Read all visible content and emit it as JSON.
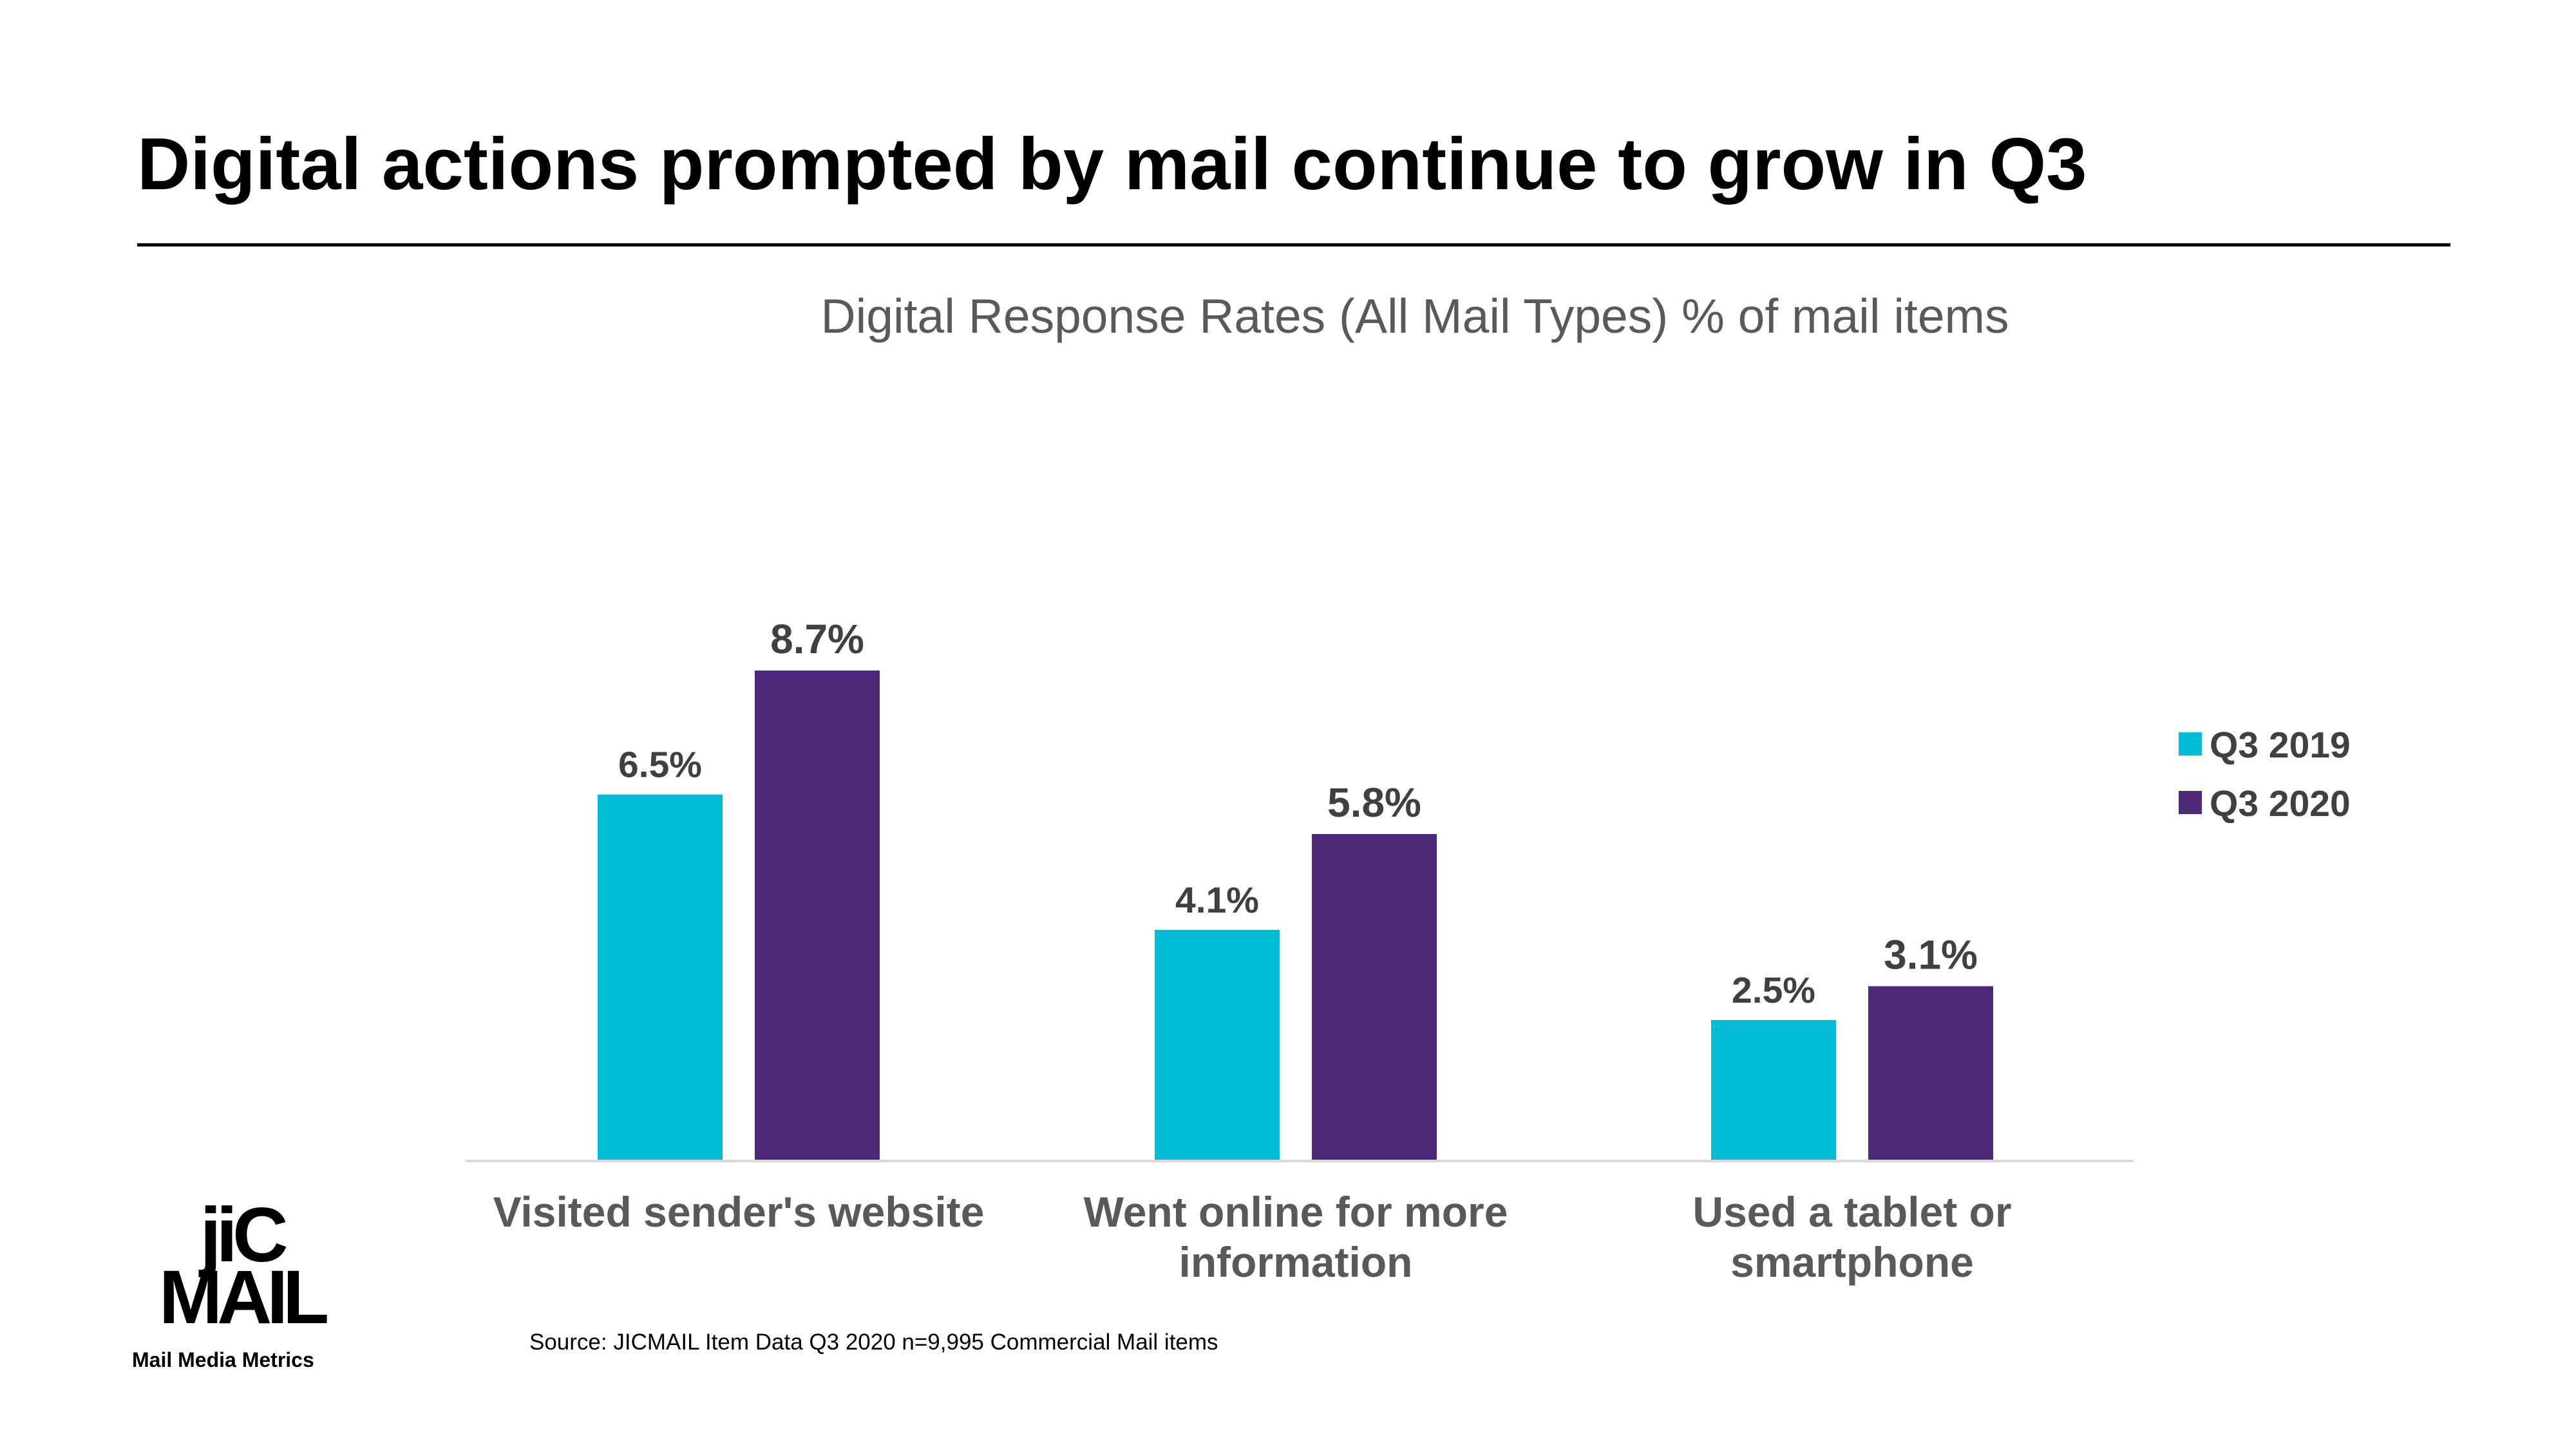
{
  "slide": {
    "title": "Digital actions prompted by mail continue to grow in Q3",
    "source_note": "Source: JICMAIL Item Data Q3 2020 n=9,995 Commercial Mail items"
  },
  "logo": {
    "mark_line1": "jiC",
    "mark_line2": "MAIL",
    "tagline": "Mail Media Metrics"
  },
  "chart_data": {
    "type": "bar",
    "title": "Digital Response Rates (All Mail Types) % of mail items",
    "xlabel": "",
    "ylabel": "",
    "ylim": [
      0,
      10
    ],
    "grid": false,
    "legend_position": "right",
    "categories": [
      [
        "Visited sender's website"
      ],
      [
        "Went online for more",
        "information"
      ],
      [
        "Used a tablet or",
        "smartphone"
      ]
    ],
    "series": [
      {
        "name": "Q3 2019",
        "color": "#00BCD4",
        "values": [
          6.5,
          4.1,
          2.5
        ],
        "labels": [
          "6.5%",
          "4.1%",
          "2.5%"
        ]
      },
      {
        "name": "Q3 2020",
        "color": "#4B2878",
        "values": [
          8.7,
          5.8,
          3.1
        ],
        "labels": [
          "8.7%",
          "5.8%",
          "3.1%"
        ]
      }
    ]
  }
}
